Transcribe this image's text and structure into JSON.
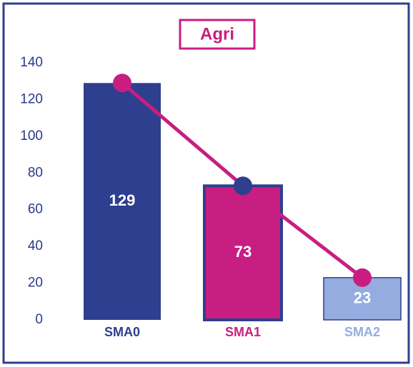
{
  "chart_data": {
    "type": "bar",
    "title": "Agri",
    "categories": [
      "SMA0",
      "SMA1",
      "SMA2"
    ],
    "values": [
      129,
      73,
      23
    ],
    "colors": [
      "#2e3f8f",
      "#c81e82",
      "#94ace0"
    ],
    "line_color": "#c81e82",
    "marker_colors": [
      "#c81e82",
      "#2e3f8f",
      "#c81e82"
    ],
    "ylim": [
      0,
      140
    ],
    "yticks": [
      0,
      20,
      40,
      60,
      80,
      100,
      120,
      140
    ],
    "grid": false
  }
}
